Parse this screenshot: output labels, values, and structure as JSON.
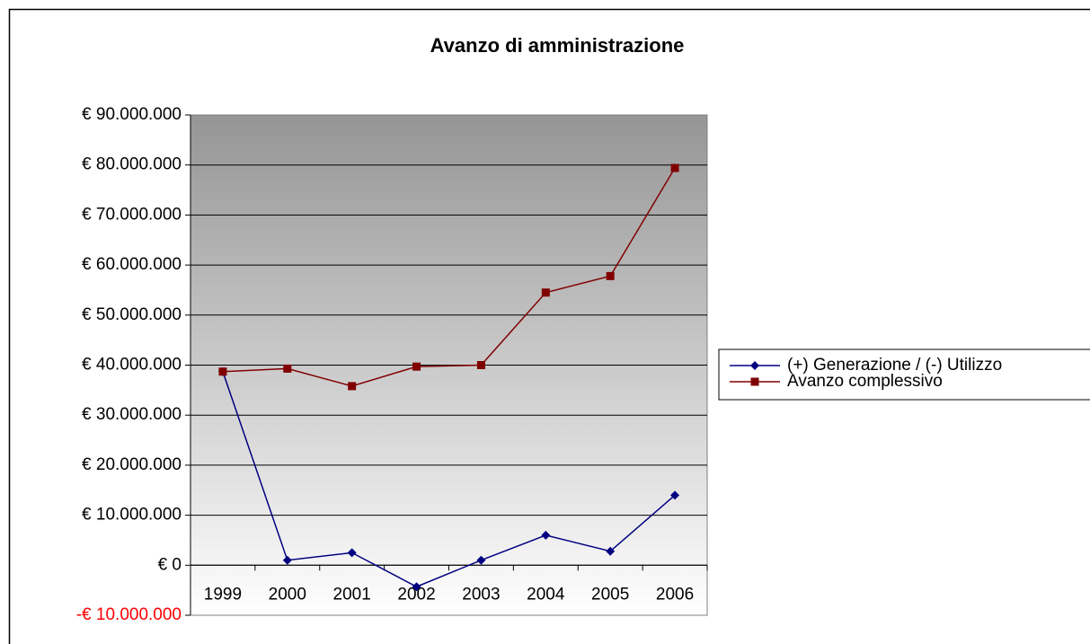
{
  "chart_data": {
    "type": "line",
    "title": "Avanzo di amministrazione",
    "categories": [
      "1999",
      "2000",
      "2001",
      "2002",
      "2003",
      "2004",
      "2005",
      "2006"
    ],
    "series": [
      {
        "name": "(+) Generazione / (-) Utilizzo",
        "color": "#000080",
        "marker": "diamond",
        "values": [
          38700000,
          1000000,
          2500000,
          -4300000,
          1000000,
          6000000,
          2800000,
          14000000
        ]
      },
      {
        "name": "Avanzo complessivo",
        "color": "#800000",
        "marker": "square",
        "values": [
          38700000,
          39300000,
          35800000,
          39700000,
          40000000,
          54500000,
          57800000,
          79400000
        ]
      }
    ],
    "ylim": [
      -10000000,
      90000000
    ],
    "yticks": [
      {
        "value": -10000000,
        "label": "-€ 10.000.000"
      },
      {
        "value": 0,
        "label": "€ 0"
      },
      {
        "value": 10000000,
        "label": "€ 10.000.000"
      },
      {
        "value": 20000000,
        "label": "€ 20.000.000"
      },
      {
        "value": 30000000,
        "label": "€ 30.000.000"
      },
      {
        "value": 40000000,
        "label": "€ 40.000.000"
      },
      {
        "value": 50000000,
        "label": "€ 50.000.000"
      },
      {
        "value": 60000000,
        "label": "€ 60.000.000"
      },
      {
        "value": 70000000,
        "label": "€ 70.000.000"
      },
      {
        "value": 80000000,
        "label": "€ 80.000.000"
      },
      {
        "value": 90000000,
        "label": "€ 90.000.000"
      }
    ],
    "grid": true,
    "negative_tick_color": "#ff0000",
    "legend": "right"
  }
}
